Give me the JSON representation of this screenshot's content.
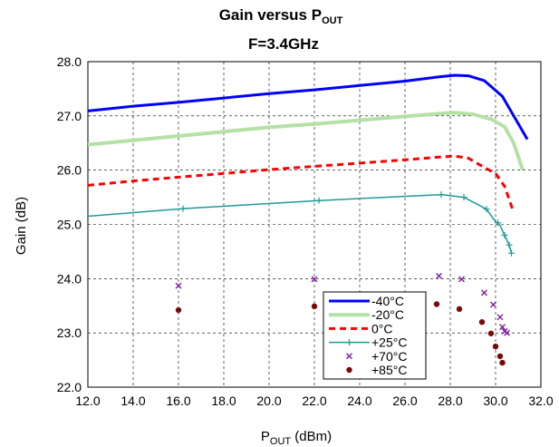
{
  "chart_data": {
    "type": "line",
    "title": {
      "main": "Gain versus P",
      "sub": "OUT"
    },
    "subtitle": "F=3.4GHz",
    "xlabel": {
      "main": "P",
      "sub": "OUT",
      "unit": " (dBm)"
    },
    "ylabel": "Gain (dB)",
    "xlim": [
      12.0,
      32.0
    ],
    "ylim": [
      22.0,
      28.0
    ],
    "xticks": [
      "12.0",
      "14.0",
      "16.0",
      "18.0",
      "20.0",
      "22.0",
      "24.0",
      "26.0",
      "28.0",
      "30.0",
      "32.0"
    ],
    "yticks": [
      "22.0",
      "23.0",
      "24.0",
      "25.0",
      "26.0",
      "27.0",
      "28.0"
    ],
    "grid": true,
    "legend_position": "bottom-right",
    "series": [
      {
        "name": "-40°C",
        "color": "#0000ff",
        "style": "solid",
        "width": 3,
        "points": [
          [
            12.0,
            27.09
          ],
          [
            14.0,
            27.18
          ],
          [
            16.0,
            27.25
          ],
          [
            18.0,
            27.33
          ],
          [
            20.0,
            27.41
          ],
          [
            22.0,
            27.48
          ],
          [
            24.0,
            27.56
          ],
          [
            26.0,
            27.64
          ],
          [
            27.5,
            27.72
          ],
          [
            28.2,
            27.75
          ],
          [
            28.8,
            27.74
          ],
          [
            29.5,
            27.65
          ],
          [
            30.3,
            27.36
          ],
          [
            30.8,
            27.0
          ],
          [
            31.4,
            26.57
          ]
        ]
      },
      {
        "name": "-20°C",
        "color": "#b5e0a6",
        "style": "solid",
        "width": 4,
        "points": [
          [
            12.0,
            26.47
          ],
          [
            14.0,
            26.55
          ],
          [
            16.0,
            26.63
          ],
          [
            18.0,
            26.71
          ],
          [
            20.0,
            26.79
          ],
          [
            22.0,
            26.85
          ],
          [
            24.0,
            26.92
          ],
          [
            26.0,
            26.99
          ],
          [
            27.5,
            27.04
          ],
          [
            28.2,
            27.06
          ],
          [
            29.0,
            27.03
          ],
          [
            29.8,
            26.94
          ],
          [
            30.4,
            26.8
          ],
          [
            30.8,
            26.5
          ],
          [
            31.2,
            26.0
          ]
        ]
      },
      {
        "name": "0°C",
        "color": "#ff0000",
        "style": "dashed",
        "width": 3,
        "points": [
          [
            12.0,
            25.72
          ],
          [
            14.0,
            25.8
          ],
          [
            16.0,
            25.87
          ],
          [
            18.0,
            25.94
          ],
          [
            20.0,
            26.01
          ],
          [
            22.0,
            26.07
          ],
          [
            24.0,
            26.13
          ],
          [
            26.0,
            26.19
          ],
          [
            27.5,
            26.24
          ],
          [
            28.2,
            26.26
          ],
          [
            28.8,
            26.22
          ],
          [
            29.5,
            26.05
          ],
          [
            30.0,
            25.94
          ],
          [
            30.4,
            25.7
          ],
          [
            30.8,
            25.22
          ]
        ]
      },
      {
        "name": "+25°C",
        "color": "#1f9a9a",
        "style": "solid",
        "width": 1.5,
        "marker": "plus",
        "points": [
          [
            12.0,
            25.15
          ],
          [
            16.2,
            25.29
          ],
          [
            22.2,
            25.44
          ],
          [
            27.6,
            25.55
          ],
          [
            28.6,
            25.5
          ],
          [
            29.6,
            25.28
          ],
          [
            30.0,
            25.05
          ],
          [
            30.2,
            24.98
          ],
          [
            30.4,
            24.8
          ],
          [
            30.6,
            24.62
          ],
          [
            30.7,
            24.47
          ]
        ],
        "marker_points": [
          [
            16.2,
            25.29
          ],
          [
            22.2,
            25.44
          ],
          [
            27.6,
            25.55
          ],
          [
            28.6,
            25.5
          ],
          [
            29.6,
            25.28
          ],
          [
            30.1,
            25.03
          ],
          [
            30.4,
            24.8
          ],
          [
            30.6,
            24.62
          ],
          [
            30.7,
            24.47
          ]
        ]
      },
      {
        "name": "+70°C",
        "color": "#7b1fa2",
        "style": "none",
        "marker": "x",
        "points": [
          [
            16.0,
            23.87
          ],
          [
            22.0,
            23.99
          ],
          [
            27.5,
            24.05
          ],
          [
            28.5,
            23.99
          ],
          [
            29.5,
            23.74
          ],
          [
            29.9,
            23.52
          ],
          [
            30.2,
            23.29
          ],
          [
            30.3,
            23.11
          ],
          [
            30.4,
            23.03
          ],
          [
            30.5,
            23.0
          ]
        ]
      },
      {
        "name": "+85°C",
        "color": "#7a0a0a",
        "style": "none",
        "marker": "dot",
        "points": [
          [
            16.0,
            23.42
          ],
          [
            22.0,
            23.49
          ],
          [
            27.4,
            23.53
          ],
          [
            28.4,
            23.44
          ],
          [
            29.4,
            23.2
          ],
          [
            29.8,
            22.99
          ],
          [
            30.0,
            22.75
          ],
          [
            30.2,
            22.57
          ],
          [
            30.3,
            22.45
          ]
        ]
      }
    ]
  }
}
